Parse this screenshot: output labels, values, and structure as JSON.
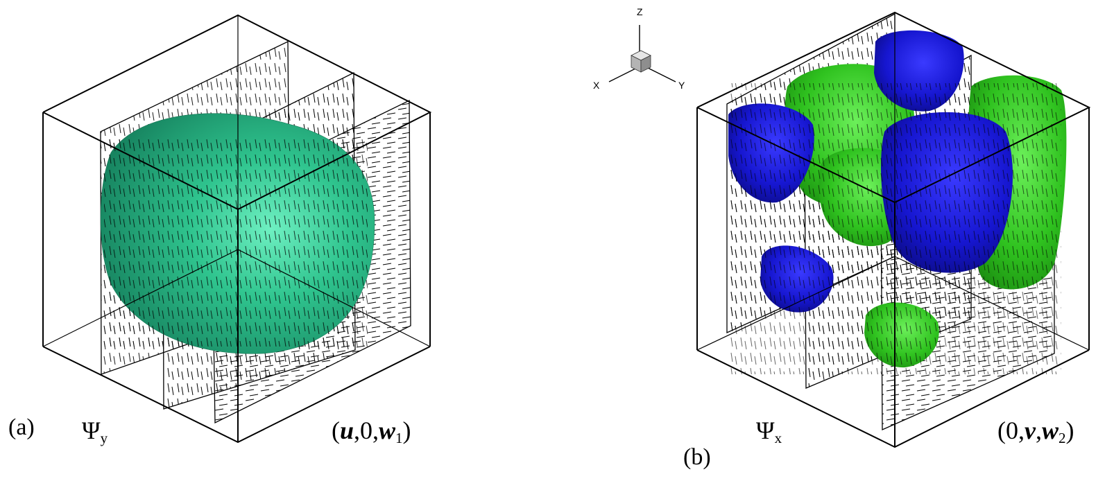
{
  "panels": [
    {
      "letter": "(a)",
      "field_symbol": "Ψ",
      "field_subscript": "y",
      "vector": {
        "open": "(",
        "c1": "u",
        "sep1": ",0,",
        "c2": "w",
        "sub": "1",
        "close": ")"
      },
      "isosurfaces": [
        {
          "name": "single",
          "color": "#27b481"
        }
      ]
    },
    {
      "letter": "(b)",
      "field_symbol": "Ψ",
      "field_subscript": "x",
      "vector": {
        "open": "(0,",
        "c1": "v",
        "sep1": ",",
        "c2": "w",
        "sub": "2",
        "close": ")"
      },
      "isosurfaces": [
        {
          "name": "negative",
          "color": "#1414c8"
        },
        {
          "name": "positive",
          "color": "#2bc21f"
        }
      ]
    }
  ],
  "axis_triad": {
    "labels": {
      "z": "Z",
      "x": "X",
      "y": "Y"
    },
    "cube_color": "#bdbdbd"
  }
}
